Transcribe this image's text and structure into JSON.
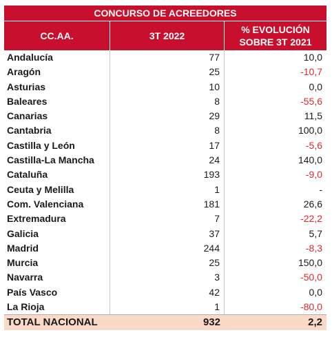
{
  "title": "CONCURSO DE ACREEDORES",
  "headers": {
    "region": "CC.AA.",
    "period": "3T 2022",
    "evolution_line1": "% EVOLUCIÓN",
    "evolution_line2": "SOBRE 3T 2021"
  },
  "rows": [
    {
      "region": "Andalucía",
      "value": "77",
      "evolution": "10,0"
    },
    {
      "region": "Aragón",
      "value": "25",
      "evolution": "-10,7"
    },
    {
      "region": "Asturias",
      "value": "10",
      "evolution": "0,0"
    },
    {
      "region": "Baleares",
      "value": "8",
      "evolution": "-55,6"
    },
    {
      "region": "Canarias",
      "value": "29",
      "evolution": "11,5"
    },
    {
      "region": "Cantabria",
      "value": "8",
      "evolution": "100,0"
    },
    {
      "region": "Castilla y León",
      "value": "17",
      "evolution": "-5,6"
    },
    {
      "region": "Castilla-La Mancha",
      "value": "24",
      "evolution": "140,0"
    },
    {
      "region": "Cataluña",
      "value": "193",
      "evolution": "-9,0"
    },
    {
      "region": "Ceuta y Melilla",
      "value": "1",
      "evolution": "-"
    },
    {
      "region": "Com. Valenciana",
      "value": "181",
      "evolution": "26,6"
    },
    {
      "region": "Extremadura",
      "value": "7",
      "evolution": "-22,2"
    },
    {
      "region": "Galicia",
      "value": "37",
      "evolution": "5,7"
    },
    {
      "region": "Madrid",
      "value": "244",
      "evolution": "-8,3"
    },
    {
      "region": "Murcia",
      "value": "25",
      "evolution": "150,0"
    },
    {
      "region": "Navarra",
      "value": "3",
      "evolution": "-50,0"
    },
    {
      "region": "País Vasco",
      "value": "42",
      "evolution": "0,0"
    },
    {
      "region": "La Rioja",
      "value": "1",
      "evolution": "-80,0"
    }
  ],
  "total": {
    "label": "TOTAL NACIONAL",
    "value": "932",
    "evolution": "2,2"
  },
  "colors": {
    "header_bg": "#c8102e",
    "negative": "#e0282c",
    "total_bg": "#fbd9c8"
  }
}
